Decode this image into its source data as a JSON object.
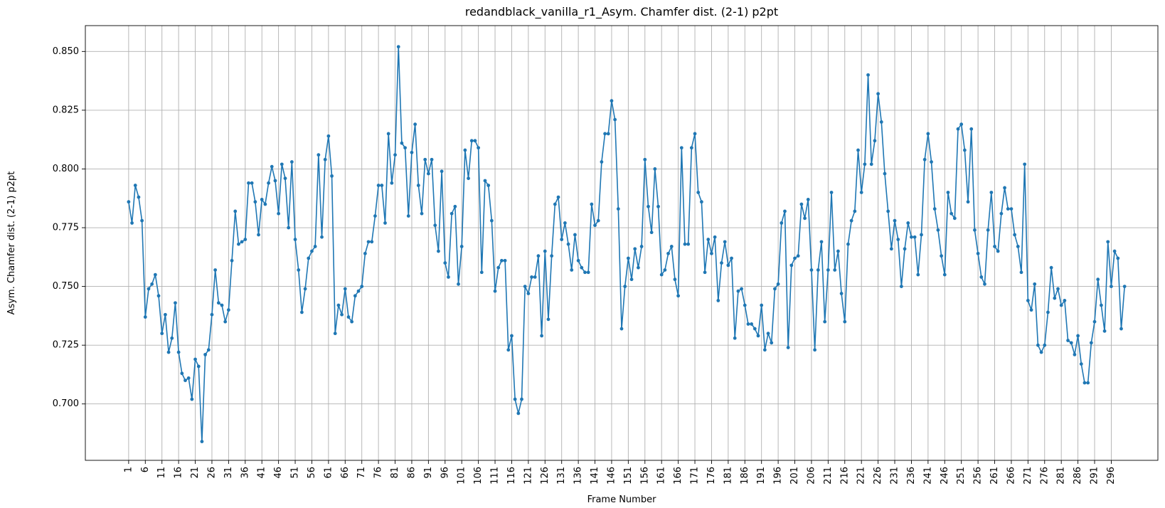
{
  "chart_data": {
    "type": "line",
    "title": "redandblack_vanilla_r1_Asym. Chamfer dist. (2-1) p2pt",
    "xlabel": "Frame Number",
    "ylabel": "Asym. Chamfer dist. (2-1) p2pt",
    "xlim": [
      -12,
      310
    ],
    "ylim": [
      0.676,
      0.861
    ],
    "xticks": [
      1,
      6,
      11,
      16,
      21,
      26,
      31,
      36,
      41,
      46,
      51,
      56,
      61,
      66,
      71,
      76,
      81,
      86,
      91,
      96,
      101,
      106,
      111,
      116,
      121,
      126,
      131,
      136,
      141,
      146,
      151,
      156,
      161,
      166,
      171,
      176,
      181,
      186,
      191,
      196,
      201,
      206,
      211,
      216,
      221,
      226,
      231,
      236,
      241,
      246,
      251,
      256,
      261,
      266,
      271,
      276,
      281,
      286,
      291,
      296
    ],
    "yticks": [
      0.7,
      0.725,
      0.75,
      0.775,
      0.8,
      0.825,
      0.85
    ],
    "grid": true,
    "color": "#1f77b4",
    "x_start": 1,
    "values": [
      0.786,
      0.777,
      0.793,
      0.788,
      0.778,
      0.737,
      0.749,
      0.751,
      0.755,
      0.746,
      0.73,
      0.738,
      0.722,
      0.728,
      0.743,
      0.722,
      0.713,
      0.71,
      0.711,
      0.702,
      0.719,
      0.716,
      0.684,
      0.721,
      0.723,
      0.738,
      0.757,
      0.743,
      0.742,
      0.735,
      0.74,
      0.761,
      0.782,
      0.768,
      0.769,
      0.77,
      0.794,
      0.794,
      0.786,
      0.772,
      0.787,
      0.785,
      0.794,
      0.801,
      0.795,
      0.781,
      0.802,
      0.796,
      0.775,
      0.803,
      0.77,
      0.757,
      0.739,
      0.749,
      0.762,
      0.765,
      0.767,
      0.806,
      0.771,
      0.804,
      0.814,
      0.797,
      0.73,
      0.742,
      0.738,
      0.749,
      0.737,
      0.735,
      0.746,
      0.748,
      0.75,
      0.764,
      0.769,
      0.769,
      0.78,
      0.793,
      0.793,
      0.777,
      0.815,
      0.794,
      0.806,
      0.852,
      0.811,
      0.809,
      0.78,
      0.807,
      0.819,
      0.793,
      0.781,
      0.804,
      0.798,
      0.804,
      0.776,
      0.765,
      0.799,
      0.76,
      0.754,
      0.781,
      0.784,
      0.751,
      0.767,
      0.808,
      0.796,
      0.812,
      0.812,
      0.809,
      0.756,
      0.795,
      0.793,
      0.778,
      0.748,
      0.758,
      0.761,
      0.761,
      0.723,
      0.729,
      0.702,
      0.696,
      0.702,
      0.75,
      0.747,
      0.754,
      0.754,
      0.763,
      0.729,
      0.765,
      0.736,
      0.763,
      0.785,
      0.788,
      0.77,
      0.777,
      0.768,
      0.757,
      0.772,
      0.761,
      0.758,
      0.756,
      0.756,
      0.785,
      0.776,
      0.778,
      0.803,
      0.815,
      0.815,
      0.829,
      0.821,
      0.783,
      0.732,
      0.75,
      0.762,
      0.753,
      0.766,
      0.758,
      0.767,
      0.804,
      0.784,
      0.773,
      0.8,
      0.784,
      0.755,
      0.757,
      0.764,
      0.767,
      0.753,
      0.746,
      0.809,
      0.768,
      0.768,
      0.809,
      0.815,
      0.79,
      0.786,
      0.756,
      0.77,
      0.764,
      0.771,
      0.744,
      0.76,
      0.769,
      0.759,
      0.762,
      0.728,
      0.748,
      0.749,
      0.742,
      0.734,
      0.734,
      0.732,
      0.729,
      0.742,
      0.723,
      0.73,
      0.726,
      0.749,
      0.751,
      0.777,
      0.782,
      0.724,
      0.759,
      0.762,
      0.763,
      0.785,
      0.779,
      0.787,
      0.757,
      0.723,
      0.757,
      0.769,
      0.735,
      0.757,
      0.79,
      0.757,
      0.765,
      0.747,
      0.735,
      0.768,
      0.778,
      0.782,
      0.808,
      0.79,
      0.802,
      0.84,
      0.802,
      0.812,
      0.832,
      0.82,
      0.798,
      0.782,
      0.766,
      0.778,
      0.77,
      0.75,
      0.766,
      0.777,
      0.771,
      0.771,
      0.755,
      0.772,
      0.804,
      0.815,
      0.803,
      0.783,
      0.774,
      0.763,
      0.755,
      0.79,
      0.781,
      0.779,
      0.817,
      0.819,
      0.808,
      0.786,
      0.817,
      0.774,
      0.764,
      0.754,
      0.751,
      0.774,
      0.79,
      0.767,
      0.765,
      0.781,
      0.792,
      0.783,
      0.783,
      0.772,
      0.767,
      0.756,
      0.802,
      0.744,
      0.74,
      0.751,
      0.725,
      0.722,
      0.725,
      0.739,
      0.758,
      0.745,
      0.749,
      0.742,
      0.744,
      0.727,
      0.726,
      0.721,
      0.729,
      0.717,
      0.709,
      0.709,
      0.726,
      0.735,
      0.753,
      0.742,
      0.731,
      0.769,
      0.75,
      0.765,
      0.762,
      0.732,
      0.75
    ]
  }
}
